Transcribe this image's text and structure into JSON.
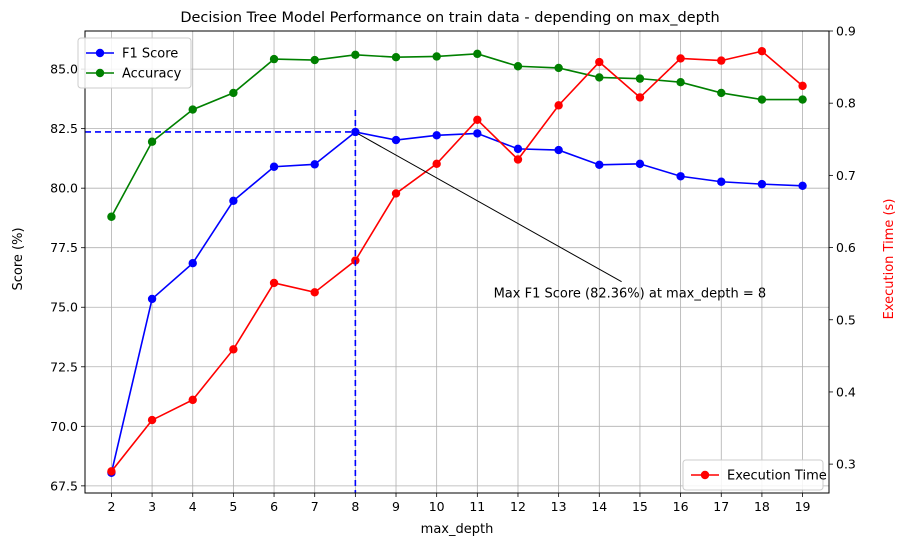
{
  "chart_data": {
    "type": "line",
    "title": "Decision Tree Model Performance on train data - depending on max_depth",
    "xlabel": "max_depth",
    "ylabel": "Score (%)",
    "y2label": "Execution Time (s)",
    "x": [
      2,
      3,
      4,
      5,
      6,
      7,
      8,
      9,
      10,
      11,
      12,
      13,
      14,
      15,
      16,
      17,
      18,
      19
    ],
    "xlim": [
      1.35,
      19.65
    ],
    "ylim": [
      67.2,
      86.6
    ],
    "y2lim": [
      0.26,
      0.9
    ],
    "yticks": [
      67.5,
      70.0,
      72.5,
      75.0,
      77.5,
      80.0,
      82.5,
      85.0
    ],
    "y2ticks": [
      0.3,
      0.4,
      0.5,
      0.6,
      0.7,
      0.8,
      0.9
    ],
    "grid": true,
    "series": [
      {
        "name": "F1 Score",
        "axis": "left",
        "color": "#0000ff",
        "values": [
          68.05,
          75.35,
          76.85,
          79.47,
          80.9,
          81.0,
          82.36,
          82.02,
          82.22,
          82.3,
          81.65,
          81.6,
          80.98,
          81.02,
          80.5,
          80.27,
          80.17,
          80.1
        ]
      },
      {
        "name": "Accuracy",
        "axis": "left",
        "color": "#008000",
        "values": [
          78.8,
          81.95,
          83.3,
          84.0,
          85.42,
          85.38,
          85.6,
          85.5,
          85.53,
          85.64,
          85.12,
          85.05,
          84.65,
          84.6,
          84.45,
          84.0,
          83.72,
          83.72
        ]
      },
      {
        "name": "Execution Time",
        "axis": "right",
        "color": "#ff0000",
        "values": [
          0.29,
          0.361,
          0.389,
          0.459,
          0.551,
          0.538,
          0.582,
          0.675,
          0.716,
          0.777,
          0.722,
          0.797,
          0.857,
          0.808,
          0.862,
          0.859,
          0.872,
          0.824
        ]
      }
    ],
    "annotation": {
      "text": "Max F1 Score (82.36%) at max_depth = 8",
      "point": {
        "x": 8,
        "y": 82.36
      },
      "text_pos": {
        "x": 11.4,
        "y": 75.4
      }
    },
    "max_marker": {
      "x": 8,
      "y": 82.36,
      "color": "#0000ff"
    },
    "legend_left": {
      "placement": "upper left",
      "entries": [
        "F1 Score",
        "Accuracy"
      ]
    },
    "legend_right": {
      "placement": "lower right",
      "entries": [
        "Execution Time"
      ]
    }
  }
}
